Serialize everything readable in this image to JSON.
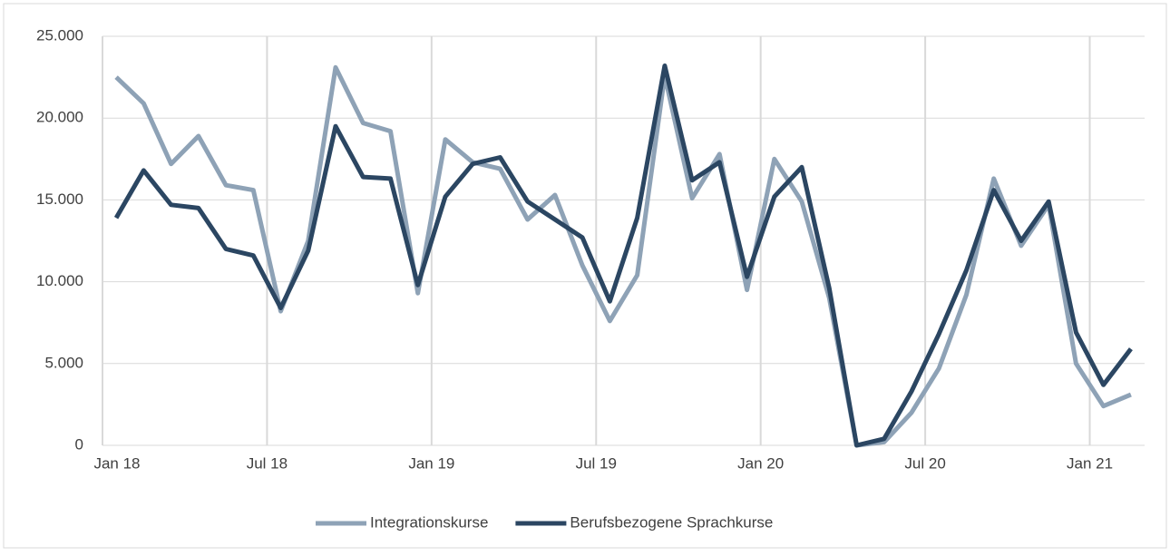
{
  "chart_data": {
    "type": "line",
    "categories": [
      "Jan 18",
      null,
      null,
      null,
      null,
      null,
      "Jul 18",
      null,
      null,
      null,
      null,
      null,
      "Jan 19",
      null,
      null,
      null,
      null,
      null,
      "Jul 19",
      null,
      null,
      null,
      null,
      null,
      "Jan 20",
      null,
      null,
      null,
      null,
      null,
      "Jul 20",
      null,
      null,
      null,
      null,
      null,
      "Jan 21",
      null
    ],
    "series": [
      {
        "name": "Integrationskurse",
        "color": "#8ea2b6",
        "values": [
          22500,
          20900,
          17200,
          18900,
          15900,
          15600,
          8200,
          12500,
          23100,
          19700,
          19200,
          9300,
          18700,
          17300,
          16900,
          13800,
          15300,
          11000,
          7600,
          10400,
          22600,
          15100,
          17800,
          9500,
          17500,
          14900,
          9000,
          0,
          200,
          2000,
          4700,
          9200,
          16300,
          12200,
          14700,
          5000,
          2400,
          3100
        ]
      },
      {
        "name": "Berufsbezogene Sprachkurse",
        "color": "#2b4662",
        "values": [
          13900,
          16800,
          14700,
          14500,
          12000,
          11600,
          8400,
          11900,
          19500,
          16400,
          16300,
          9800,
          15200,
          17200,
          17600,
          14900,
          13800,
          12700,
          8800,
          13900,
          23200,
          16200,
          17300,
          10300,
          15200,
          17000,
          9600,
          0,
          400,
          3300,
          6800,
          10700,
          15600,
          12500,
          14900,
          6900,
          3700,
          5900
        ]
      }
    ],
    "ylim": [
      0,
      25000
    ],
    "yticks": [
      0,
      {
        "value": 5000,
        "label": "5.000"
      },
      {
        "value": 10000,
        "label": "10.000"
      },
      {
        "value": 15000,
        "label": "15.000"
      },
      {
        "value": 20000,
        "label": "20.000"
      },
      {
        "value": 25000,
        "label": "25.000"
      }
    ],
    "grid": true,
    "legend": "bottom"
  }
}
